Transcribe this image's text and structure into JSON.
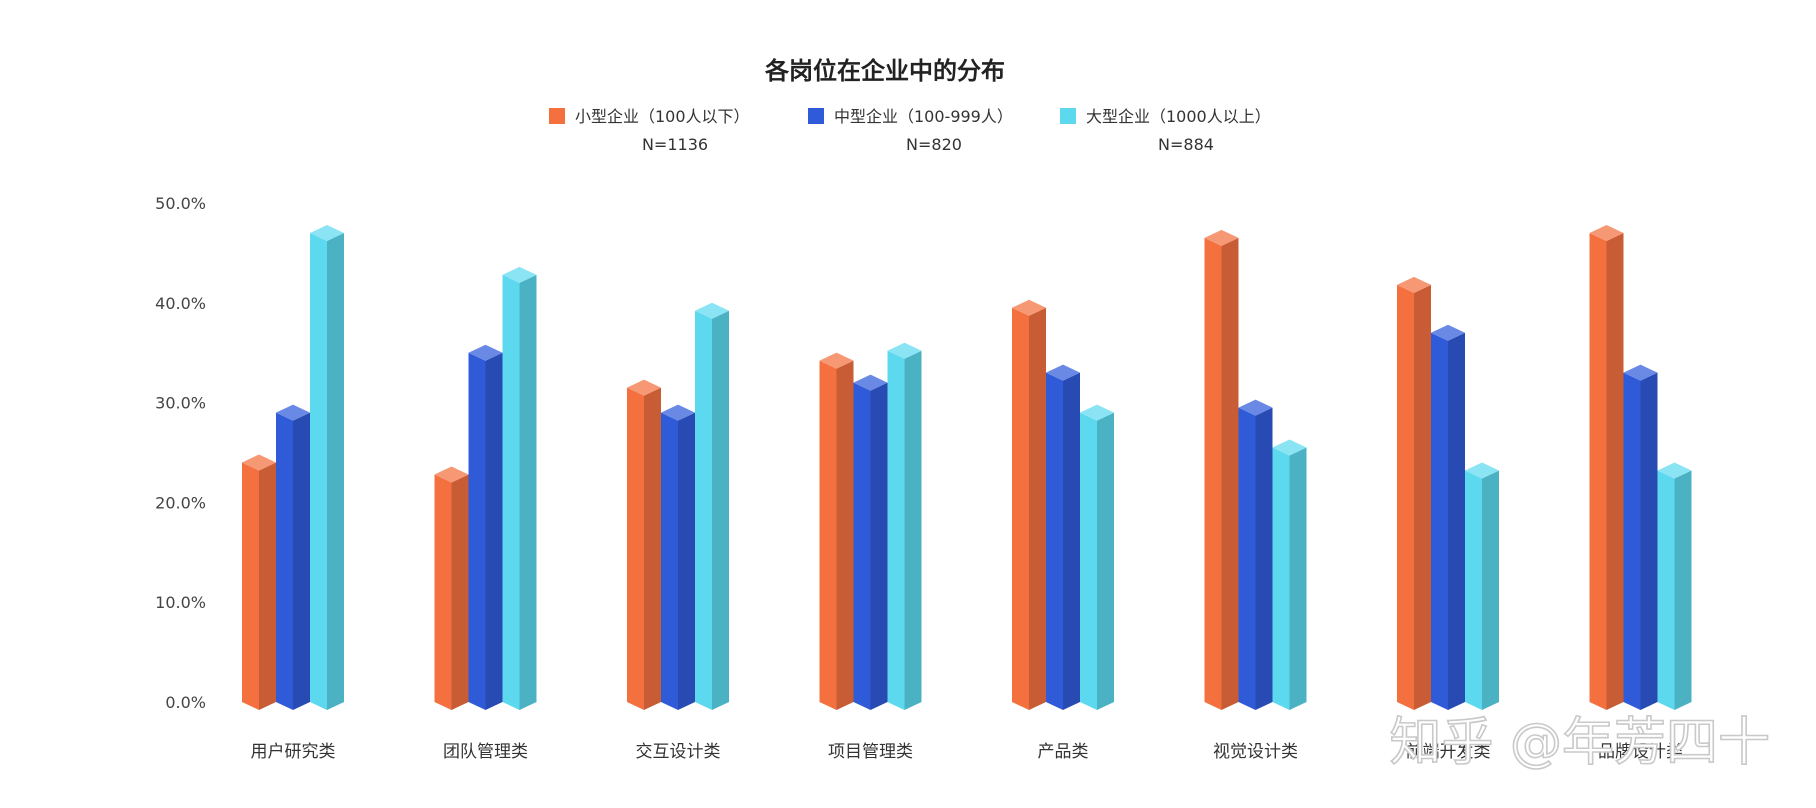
{
  "chart_data": {
    "type": "bar",
    "title": "各岗位在企业中的分布",
    "xlabel": "",
    "ylabel": "",
    "ylim": [
      0,
      50
    ],
    "y_ticks": [
      "0.0%",
      "10.0%",
      "20.0%",
      "30.0%",
      "40.0%",
      "50.0%"
    ],
    "grid": false,
    "legend_position": "top-center",
    "categories": [
      "用户研究类",
      "团队管理类",
      "交互设计类",
      "项目管理类",
      "产品类",
      "视觉设计类",
      "前端开发类",
      "品牌设计类"
    ],
    "series": [
      {
        "name": "小型企业（100人以下）",
        "n": "N=1136",
        "color": "#f4703f",
        "values": [
          24.0,
          22.8,
          31.5,
          34.2,
          39.5,
          46.5,
          41.8,
          47.0
        ]
      },
      {
        "name": "中型企业（100-999人）",
        "n": "N=820",
        "color": "#2f5bd9",
        "values": [
          29.0,
          35.0,
          29.0,
          32.0,
          33.0,
          29.5,
          37.0,
          33.0
        ]
      },
      {
        "name": "大型企业（1000人以上）",
        "n": "N=884",
        "color": "#5cd9ee",
        "values": [
          47.0,
          42.8,
          39.2,
          35.2,
          29.0,
          25.5,
          23.2,
          23.2
        ]
      }
    ]
  },
  "watermark": "知乎 @年芳四十"
}
